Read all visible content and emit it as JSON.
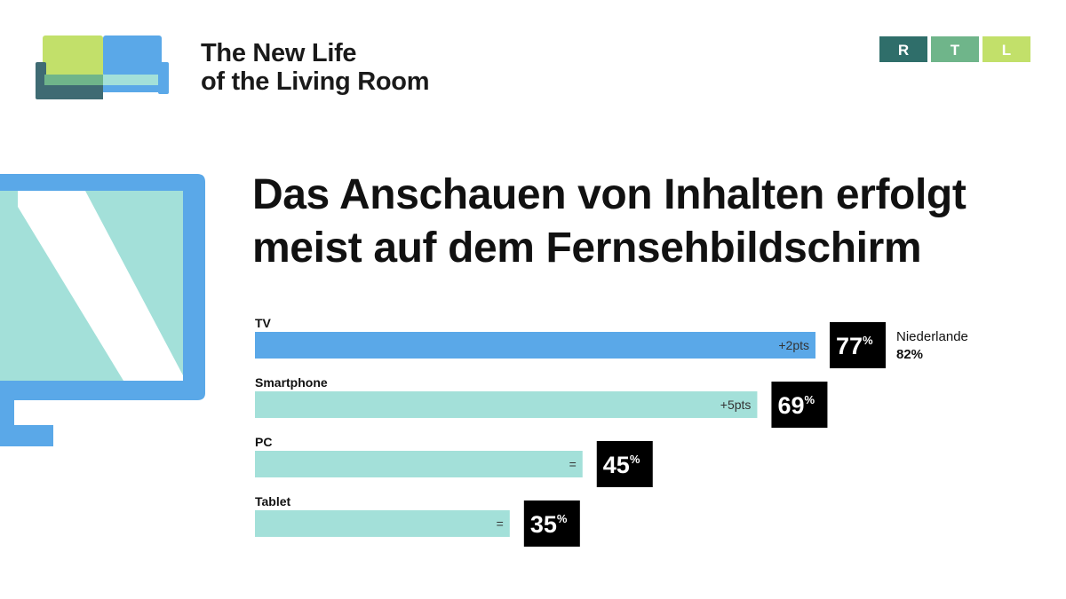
{
  "branding": {
    "title_line1": "The New Life",
    "title_line2": "of the Living Room",
    "logo_letters": [
      "R",
      "T",
      "L"
    ],
    "logo_colors": [
      "#2f6e6a",
      "#6fb58a",
      "#c2e06a"
    ]
  },
  "icons": {
    "sofa": "sofa-icon",
    "tv": "tv-screen-icon"
  },
  "colors": {
    "tv_bar": "#5aa8e8",
    "other_bar": "#a3e0d9",
    "badge_bg": "#000000",
    "badge_text": "#ffffff"
  },
  "headline": {
    "line1": "Das Anschauen von Inhalten erfolgt",
    "line2": "meist auf dem Fernsehbildschirm"
  },
  "chart_data": {
    "type": "bar",
    "orientation": "horizontal",
    "categories": [
      "TV",
      "Smartphone",
      "PC",
      "Tablet"
    ],
    "values": [
      77,
      69,
      45,
      35
    ],
    "value_labels": [
      "77",
      "69",
      "45",
      "35"
    ],
    "unit": "%",
    "changes": [
      "+2pts",
      "+5pts",
      "=",
      "="
    ],
    "comparison": {
      "label": "Niederlande",
      "value": "82%",
      "category": "TV"
    }
  }
}
